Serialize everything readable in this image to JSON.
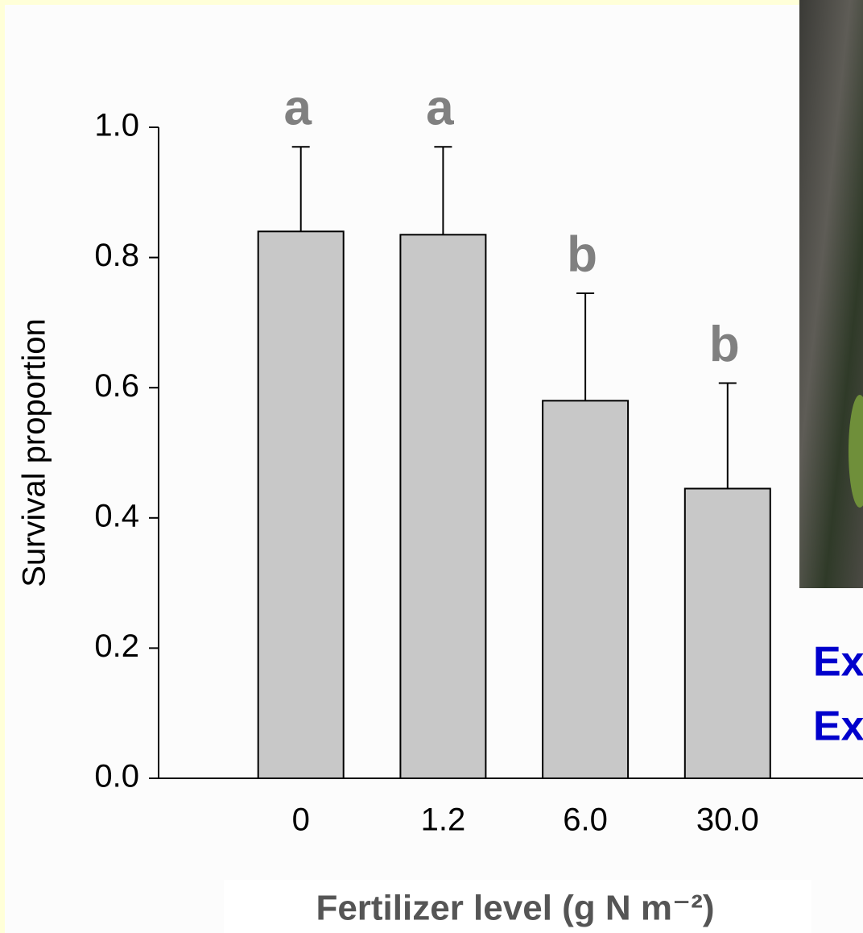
{
  "chart_data": {
    "type": "bar",
    "y_label": "Survival proportion",
    "x_label": "Fertilizer level (g N m⁻²)",
    "categories": [
      "0",
      "1.2",
      "6.0",
      "30.0"
    ],
    "values": [
      0.84,
      0.835,
      0.58,
      0.445
    ],
    "errors": [
      0.13,
      0.135,
      0.165,
      0.162
    ],
    "letters": [
      "a",
      "a",
      "b",
      "b"
    ],
    "color": "#c8c8c8",
    "letter_color": "#808080",
    "ylim": [
      0,
      1
    ],
    "yticks": [
      {
        "value": 0,
        "label": "0.0"
      },
      {
        "value": 0.2,
        "label": "0.2"
      },
      {
        "value": 0.4,
        "label": "0.4"
      },
      {
        "value": 0.6,
        "label": "0.6"
      },
      {
        "value": 0.8,
        "label": "0.8"
      },
      {
        "value": 1,
        "label": "1.0"
      }
    ]
  },
  "side_texts": [
    "Ex",
    "Ex"
  ]
}
